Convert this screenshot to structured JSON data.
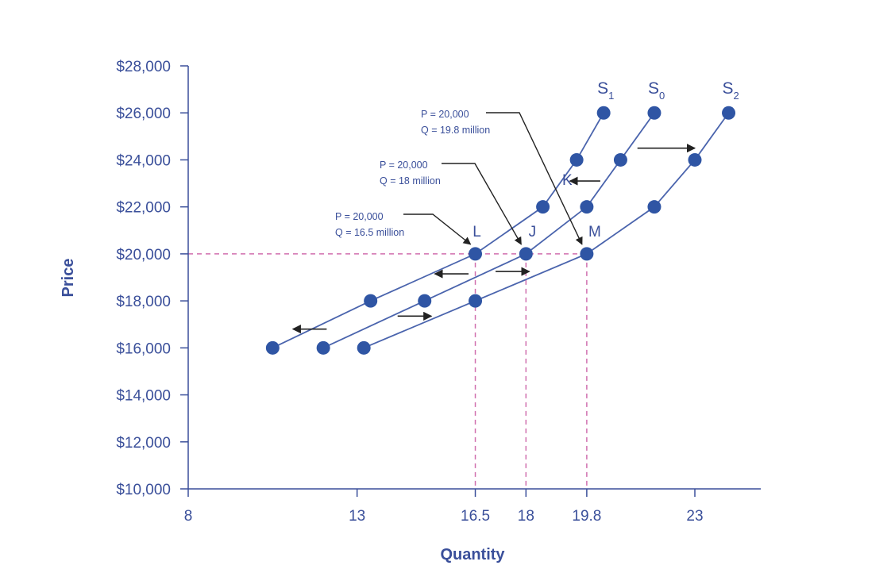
{
  "chart_data": {
    "type": "line",
    "xlabel": "Quantity",
    "ylabel": "Price",
    "xlim": [
      8,
      26
    ],
    "ylim": [
      10000,
      28000
    ],
    "x_ticks": [
      8,
      13,
      16.5,
      18,
      19.8,
      23
    ],
    "x_tick_labels": [
      "8",
      "13",
      "16.5",
      "18",
      "19.8",
      "23"
    ],
    "y_ticks": [
      10000,
      12000,
      14000,
      16000,
      18000,
      20000,
      22000,
      24000,
      26000,
      28000
    ],
    "y_tick_labels": [
      "$10,000",
      "$12,000",
      "$14,000",
      "$16,000",
      "$18,000",
      "$20,000",
      "$22,000",
      "$24,000",
      "$26,000",
      "$28,000"
    ],
    "grid": false,
    "colors": {
      "axis": "#3a4f9a",
      "line": "#4a64ad",
      "marker": "#2f55a4",
      "guide": "#d06fae",
      "arrow": "#222222"
    },
    "series": [
      {
        "name": "S",
        "sub": "1",
        "x": [
          10.5,
          13.4,
          16.5,
          18.5,
          19.5,
          20.3
        ],
        "y": [
          16000,
          18000,
          20000,
          22000,
          24000,
          26000
        ]
      },
      {
        "name": "S",
        "sub": "0",
        "x": [
          12,
          15,
          18,
          19.8,
          20.8,
          21.8
        ],
        "y": [
          16000,
          18000,
          20000,
          22000,
          24000,
          26000
        ]
      },
      {
        "name": "S",
        "sub": "2",
        "x": [
          13.2,
          16.5,
          19.8,
          21.8,
          23,
          24
        ],
        "y": [
          16000,
          18000,
          20000,
          22000,
          24000,
          26000
        ]
      }
    ],
    "guide_lines": {
      "y": 20000,
      "x": [
        16.5,
        18,
        19.8
      ]
    },
    "point_labels": [
      {
        "text": "L",
        "x": 16.5,
        "y": 20000
      },
      {
        "text": "J",
        "x": 18,
        "y": 20000
      },
      {
        "text": "M",
        "x": 19.8,
        "y": 20000
      },
      {
        "text": "K",
        "x": 19.2,
        "y": 23000
      }
    ],
    "annotations": [
      {
        "lines": [
          "P = 20,000",
          "Q = 19.8 million"
        ],
        "target": "M"
      },
      {
        "lines": [
          "P = 20,000",
          "Q = 18 million"
        ],
        "target": "J"
      },
      {
        "lines": [
          "P = 20,000",
          "Q = 16.5 million"
        ],
        "target": "L"
      }
    ],
    "shift_arrows": [
      {
        "direction": "left",
        "x_from": 20.2,
        "x_to": 19.3,
        "y": 23100
      },
      {
        "direction": "right",
        "x_from": 21.3,
        "x_to": 23,
        "y": 24500
      },
      {
        "direction": "left",
        "x_from": 16.3,
        "x_to": 15.3,
        "y": 19150
      },
      {
        "direction": "right",
        "x_from": 17.1,
        "x_to": 18.1,
        "y": 19250
      },
      {
        "direction": "left",
        "x_from": 12.1,
        "x_to": 11.1,
        "y": 16800
      },
      {
        "direction": "right",
        "x_from": 14.2,
        "x_to": 15.2,
        "y": 17350
      }
    ]
  }
}
